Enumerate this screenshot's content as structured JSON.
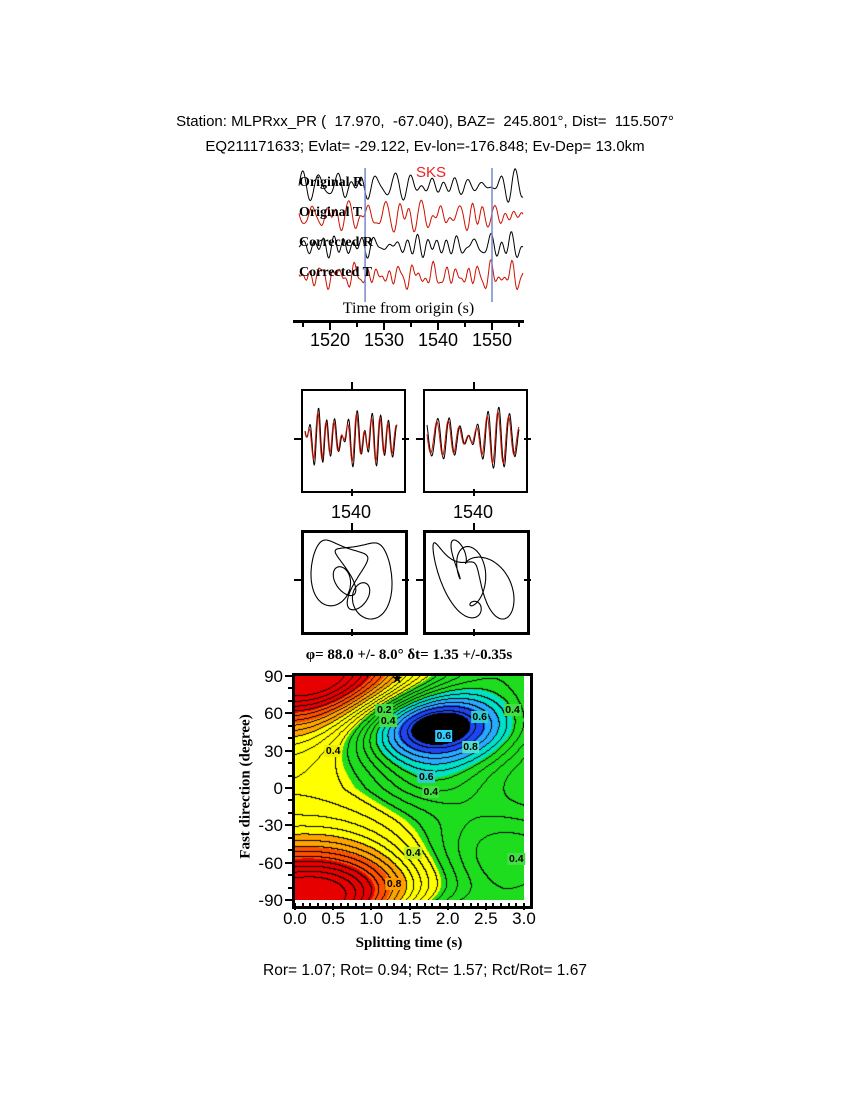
{
  "header": {
    "line1": "Station: MLPRxx_PR (  17.970,  -67.040), BAZ=  245.801°, Dist=  115.507°",
    "line2": "EQ211171633; Evlat= -29.122, Ev-lon=-176.848; Ev-Dep= 13.0km"
  },
  "waveforms": {
    "traces": [
      {
        "label": "Original R",
        "color": "#000000"
      },
      {
        "label": "Original T",
        "color": "#cc1100"
      },
      {
        "label": "Corrected R",
        "color": "#000000"
      },
      {
        "label": "Corrected T",
        "color": "#cc1100"
      }
    ],
    "phase_label": "SKS",
    "phase_color": "#ee2222",
    "window_color": "#7788cc",
    "window_s": [
      1526.5,
      1550.0
    ],
    "axis_label": "Time from origin (s)",
    "xticks": [
      1520,
      1530,
      1540,
      1550
    ]
  },
  "zoom_panels": [
    {
      "tick_label": "1540"
    },
    {
      "tick_label": "1540"
    }
  ],
  "contour": {
    "title": "φ= 88.0 +/- 8.0° δt= 1.35 +/-0.35s",
    "xlabel": "Splitting time (s)",
    "ylabel": "Fast direction (degree)",
    "xticks": [
      "0.0",
      "0.5",
      "1.0",
      "1.5",
      "2.0",
      "2.5",
      "3.0"
    ],
    "yticks": [
      90,
      60,
      30,
      0,
      -30,
      -60,
      -90
    ],
    "xlim": [
      0,
      3
    ],
    "ylim": [
      -90,
      90
    ],
    "best": {
      "dt": 1.35,
      "phi": 88
    },
    "labels": [
      {
        "text": "0.2",
        "dt": 1.17,
        "phi": 63,
        "bg": "#44dd44"
      },
      {
        "text": "0.4",
        "dt": 1.22,
        "phi": 54,
        "bg": "#44dd44"
      },
      {
        "text": "0.4",
        "dt": 0.5,
        "phi": 30,
        "bg": "#eeee00"
      },
      {
        "text": "0.6",
        "dt": 2.42,
        "phi": 57,
        "bg": "#33cccc"
      },
      {
        "text": "0.4",
        "dt": 2.85,
        "phi": 63,
        "bg": "#44dd44"
      },
      {
        "text": "0.6",
        "dt": 1.95,
        "phi": 42,
        "bg": "#33ccff"
      },
      {
        "text": "0.8",
        "dt": 2.3,
        "phi": 33,
        "bg": "#55ddcc"
      },
      {
        "text": "0.6",
        "dt": 1.72,
        "phi": 9,
        "bg": "#33cccc"
      },
      {
        "text": "0.4",
        "dt": 1.78,
        "phi": -3,
        "bg": "#44dd44"
      },
      {
        "text": "0.4",
        "dt": 1.55,
        "phi": -52,
        "bg": "#bbee22"
      },
      {
        "text": "0.4",
        "dt": 2.9,
        "phi": -57,
        "bg": "#44dd44"
      },
      {
        "text": "0.8",
        "dt": 1.3,
        "phi": -77,
        "bg": "#ff9900"
      }
    ]
  },
  "footer": "Ror= 1.07; Rot= 0.94; Rct= 1.57; Rct/Rot= 1.67",
  "chart_data": [
    {
      "type": "line",
      "panel": "waveforms",
      "series": [
        {
          "name": "Original R",
          "color": "#000000"
        },
        {
          "name": "Original T",
          "color": "#cc1100"
        },
        {
          "name": "Corrected R",
          "color": "#000000"
        },
        {
          "name": "Corrected T",
          "color": "#cc1100"
        }
      ],
      "xlabel": "Time from origin (s)",
      "xticks": [
        1520,
        1530,
        1540,
        1550
      ],
      "phase_marker": "SKS",
      "analysis_window_s": [
        1526.5,
        1550.0
      ]
    },
    {
      "type": "line",
      "panel": "windowed-components",
      "panels": 2,
      "xticks": [
        1540
      ]
    },
    {
      "type": "scatter",
      "panel": "particle-motion",
      "panels": 2
    },
    {
      "type": "heatmap",
      "panel": "error-surface",
      "title": "φ= 88.0 +/- 8.0° δt= 1.35 +/-0.35s",
      "xlabel": "Splitting time (s)",
      "ylabel": "Fast direction (degree)",
      "xlim": [
        0,
        3
      ],
      "ylim": [
        -90,
        90
      ],
      "xticks": [
        0.0,
        0.5,
        1.0,
        1.5,
        2.0,
        2.5,
        3.0
      ],
      "yticks": [
        90,
        60,
        30,
        0,
        -30,
        -60,
        -90
      ],
      "contour_label_values": [
        0.2,
        0.4,
        0.6,
        0.8
      ],
      "best_fit": {
        "phi_deg": 88.0,
        "phi_err_deg": 8.0,
        "dt_s": 1.35,
        "dt_err_s": 0.35
      },
      "legend_position": "none",
      "grid": false
    },
    {
      "type": "table",
      "panel": "quality-metrics",
      "values": {
        "Ror": 1.07,
        "Rot": 0.94,
        "Rct": 1.57,
        "Rct/Rot": 1.67
      }
    }
  ]
}
